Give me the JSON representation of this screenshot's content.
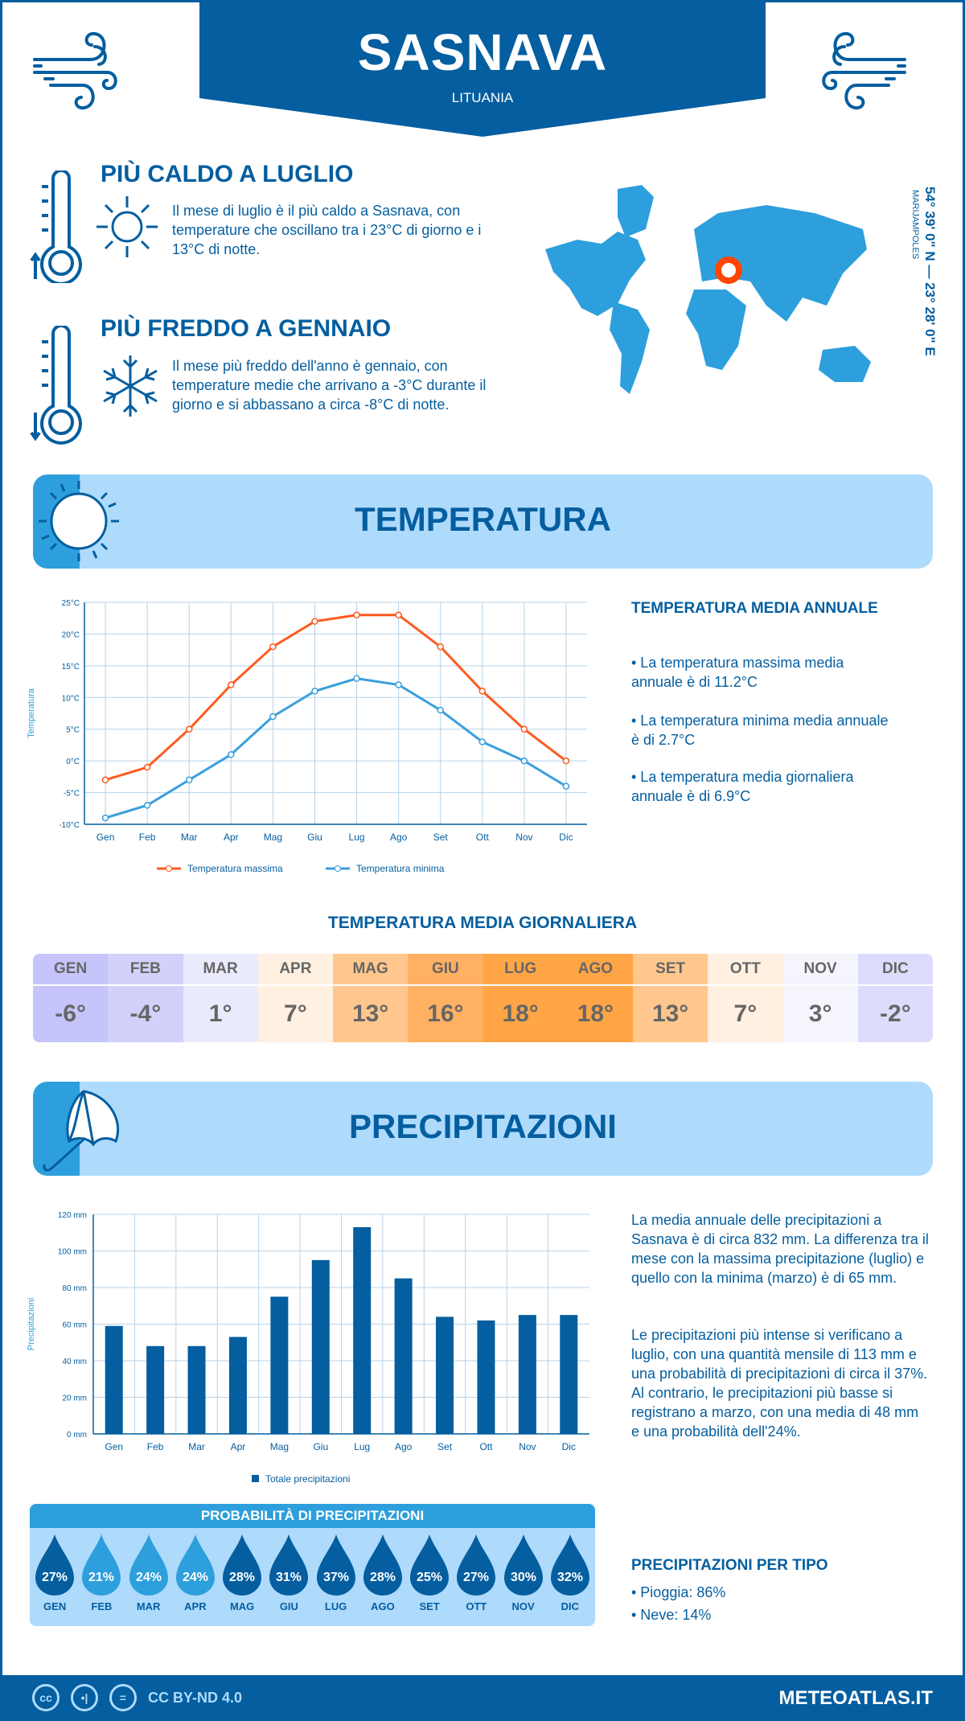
{
  "header": {
    "city": "SASNAVA",
    "country": "LITUANIA"
  },
  "hottest": {
    "title": "PIÙ CALDO A LUGLIO",
    "text": "Il mese di luglio è il più caldo a Sasnava, con temperature che oscillano tra i 23°C di giorno e i 13°C di notte."
  },
  "coldest": {
    "title": "PIÙ FREDDO A GENNAIO",
    "text": "Il mese più freddo dell'anno è gennaio, con temperature medie che arrivano a -3°C durante il giorno e si abbassano a circa -8°C di notte."
  },
  "map": {
    "coords": "54° 39' 0\" N — 23° 28' 0\" E",
    "region": "MARIJAMPOLES",
    "marker_color": "#ff4500"
  },
  "temperature": {
    "section_title": "TEMPERATURA",
    "annual_title": "TEMPERATURA MEDIA ANNUALE",
    "annual_items": [
      "• La temperatura massima media annuale è di 11.2°C",
      "• La temperatura minima media annuale è di 2.7°C",
      "• La temperatura media giornaliera annuale è di 6.9°C"
    ],
    "daily_title": "TEMPERATURA MEDIA GIORNALIERA",
    "daily": [
      {
        "m": "GEN",
        "v": "-6°",
        "c": "#c5c5fb"
      },
      {
        "m": "FEB",
        "v": "-4°",
        "c": "#d1d1fb"
      },
      {
        "m": "MAR",
        "v": "1°",
        "c": "#eaeafd"
      },
      {
        "m": "APR",
        "v": "7°",
        "c": "#fff0e1"
      },
      {
        "m": "MAG",
        "v": "13°",
        "c": "#ffc68d"
      },
      {
        "m": "GIU",
        "v": "16°",
        "c": "#ffb062"
      },
      {
        "m": "LUG",
        "v": "18°",
        "c": "#ffa546"
      },
      {
        "m": "AGO",
        "v": "18°",
        "c": "#ffa546"
      },
      {
        "m": "SET",
        "v": "13°",
        "c": "#ffc68d"
      },
      {
        "m": "OTT",
        "v": "7°",
        "c": "#fff0e1"
      },
      {
        "m": "NOV",
        "v": "3°",
        "c": "#f5f5fe"
      },
      {
        "m": "DIC",
        "v": "-2°",
        "c": "#dcdcfc"
      }
    ]
  },
  "precipitation": {
    "section_title": "PRECIPITAZIONI",
    "text1": "La media annuale delle precipitazioni a Sasnava è di circa 832 mm. La differenza tra il mese con la massima precipitazione (luglio) e quello con la minima (marzo) è di 65 mm.",
    "text2": "Le precipitazioni più intense si verificano a luglio, con una quantità mensile di 113 mm e una probabilità di precipitazioni di circa il 37%. Al contrario, le precipitazioni più basse si registrano a marzo, con una media di 48 mm e una probabilità dell'24%.",
    "prob_title": "PROBABILITÀ DI PRECIPITAZIONI",
    "prob": [
      {
        "m": "GEN",
        "v": "27%",
        "c": "#045e9f"
      },
      {
        "m": "FEB",
        "v": "21%",
        "c": "#2d9fdc"
      },
      {
        "m": "MAR",
        "v": "24%",
        "c": "#2d9fdc"
      },
      {
        "m": "APR",
        "v": "24%",
        "c": "#2d9fdc"
      },
      {
        "m": "MAG",
        "v": "28%",
        "c": "#045e9f"
      },
      {
        "m": "GIU",
        "v": "31%",
        "c": "#045e9f"
      },
      {
        "m": "LUG",
        "v": "37%",
        "c": "#045e9f"
      },
      {
        "m": "AGO",
        "v": "28%",
        "c": "#045e9f"
      },
      {
        "m": "SET",
        "v": "25%",
        "c": "#045e9f"
      },
      {
        "m": "OTT",
        "v": "27%",
        "c": "#045e9f"
      },
      {
        "m": "NOV",
        "v": "30%",
        "c": "#045e9f"
      },
      {
        "m": "DIC",
        "v": "32%",
        "c": "#045e9f"
      }
    ],
    "type_title": "PRECIPITAZIONI PER TIPO",
    "types": [
      "• Pioggia: 86%",
      "• Neve: 14%"
    ]
  },
  "footer": {
    "license": "CC BY-ND 4.0",
    "brand": "METEOATLAS.IT"
  },
  "chart_data": [
    {
      "type": "line",
      "categories": [
        "Gen",
        "Feb",
        "Mar",
        "Apr",
        "Mag",
        "Giu",
        "Lug",
        "Ago",
        "Set",
        "Ott",
        "Nov",
        "Dic"
      ],
      "ylabel": "Temperatura",
      "ylim": [
        -10,
        25
      ],
      "yticks": [
        "-10°C",
        "-5°C",
        "0°C",
        "5°C",
        "10°C",
        "15°C",
        "20°C",
        "25°C"
      ],
      "grid": true,
      "legend": "bottom",
      "series": [
        {
          "name": "Temperatura massima",
          "color": "#ff5a1f",
          "values": [
            -3,
            -1,
            5,
            12,
            18,
            22,
            23,
            23,
            18,
            11,
            5,
            0
          ]
        },
        {
          "name": "Temperatura minima",
          "color": "#3a9fdc",
          "values": [
            -9,
            -7,
            -3,
            1,
            7,
            11,
            13,
            12,
            8,
            3,
            0,
            -4
          ]
        }
      ]
    },
    {
      "type": "bar",
      "categories": [
        "Gen",
        "Feb",
        "Mar",
        "Apr",
        "Mag",
        "Giu",
        "Lug",
        "Ago",
        "Set",
        "Ott",
        "Nov",
        "Dic"
      ],
      "ylabel": "Precipitazioni",
      "ylim": [
        0,
        120
      ],
      "yticks": [
        "0 mm",
        "20 mm",
        "40 mm",
        "60 mm",
        "80 mm",
        "100 mm",
        "120 mm"
      ],
      "grid": true,
      "legend": "bottom",
      "series": [
        {
          "name": "Totale precipitazioni",
          "color": "#045e9f",
          "values": [
            59,
            48,
            48,
            53,
            75,
            95,
            113,
            85,
            64,
            62,
            65,
            65
          ]
        }
      ]
    }
  ]
}
